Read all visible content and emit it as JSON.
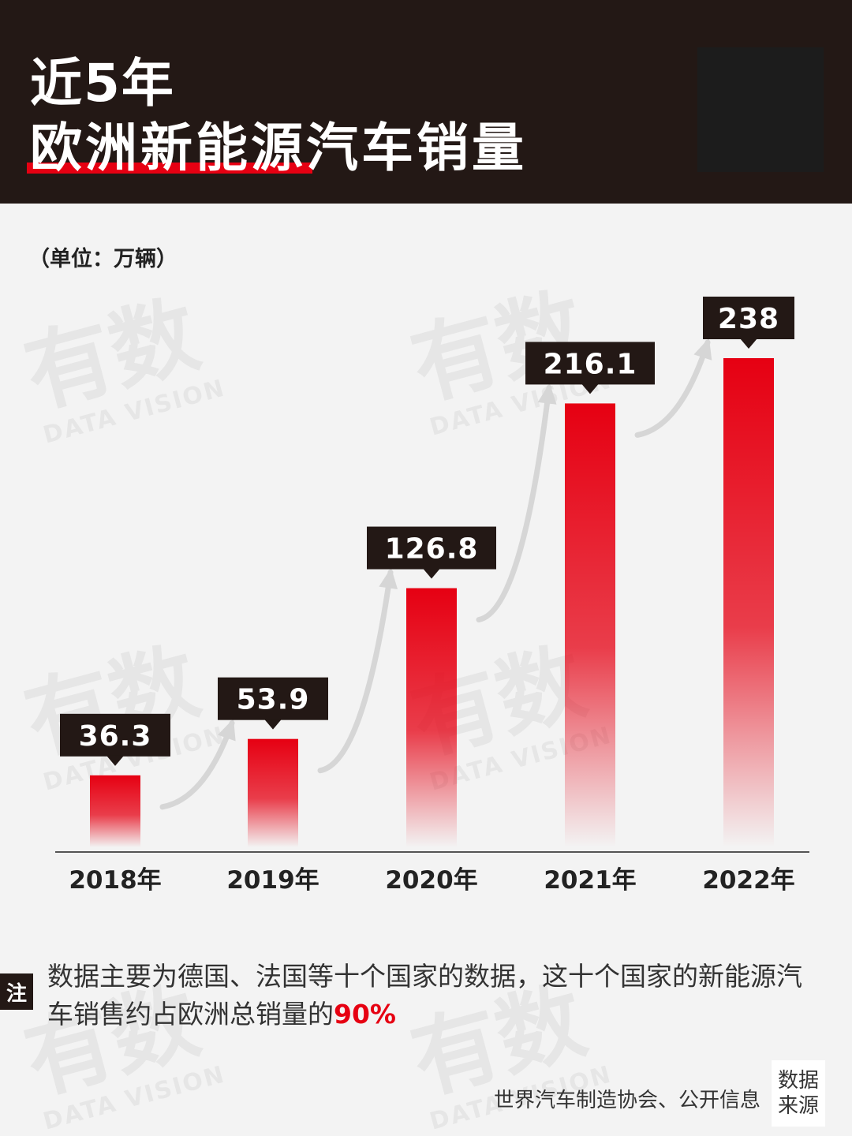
{
  "header": {
    "title_line1": "近5年",
    "title_line2_highlight": "欧洲新能源",
    "title_line2_rest": "汽车销量"
  },
  "unit_label": "（单位：万辆）",
  "watermark": {
    "big": "有数",
    "small": "DATA VISION"
  },
  "chart_data": {
    "type": "bar",
    "categories": [
      "2018年",
      "2019年",
      "2020年",
      "2021年",
      "2022年"
    ],
    "values": [
      36.3,
      53.9,
      126.8,
      216.1,
      238
    ],
    "value_labels": [
      "36.3",
      "53.9",
      "126.8",
      "216.1",
      "238"
    ],
    "title": "近5年欧洲新能源汽车销量",
    "ylabel": "（单位：万辆）",
    "ylim": [
      0,
      238
    ],
    "grid": false,
    "colors": {
      "bar_top": "#e60012",
      "label_bg": "#231815",
      "label_text": "#ffffff",
      "axis": "#555555"
    }
  },
  "note": {
    "tag": "注",
    "text_before": "数据主要为德国、法国等十个国家的数据，这十个国家的新能源汽车销售约占欧洲总销量的",
    "highlight": "90%"
  },
  "source": {
    "text": "世界汽车制造协会、公开信息",
    "tag_line1": "数据",
    "tag_line2": "来源"
  }
}
